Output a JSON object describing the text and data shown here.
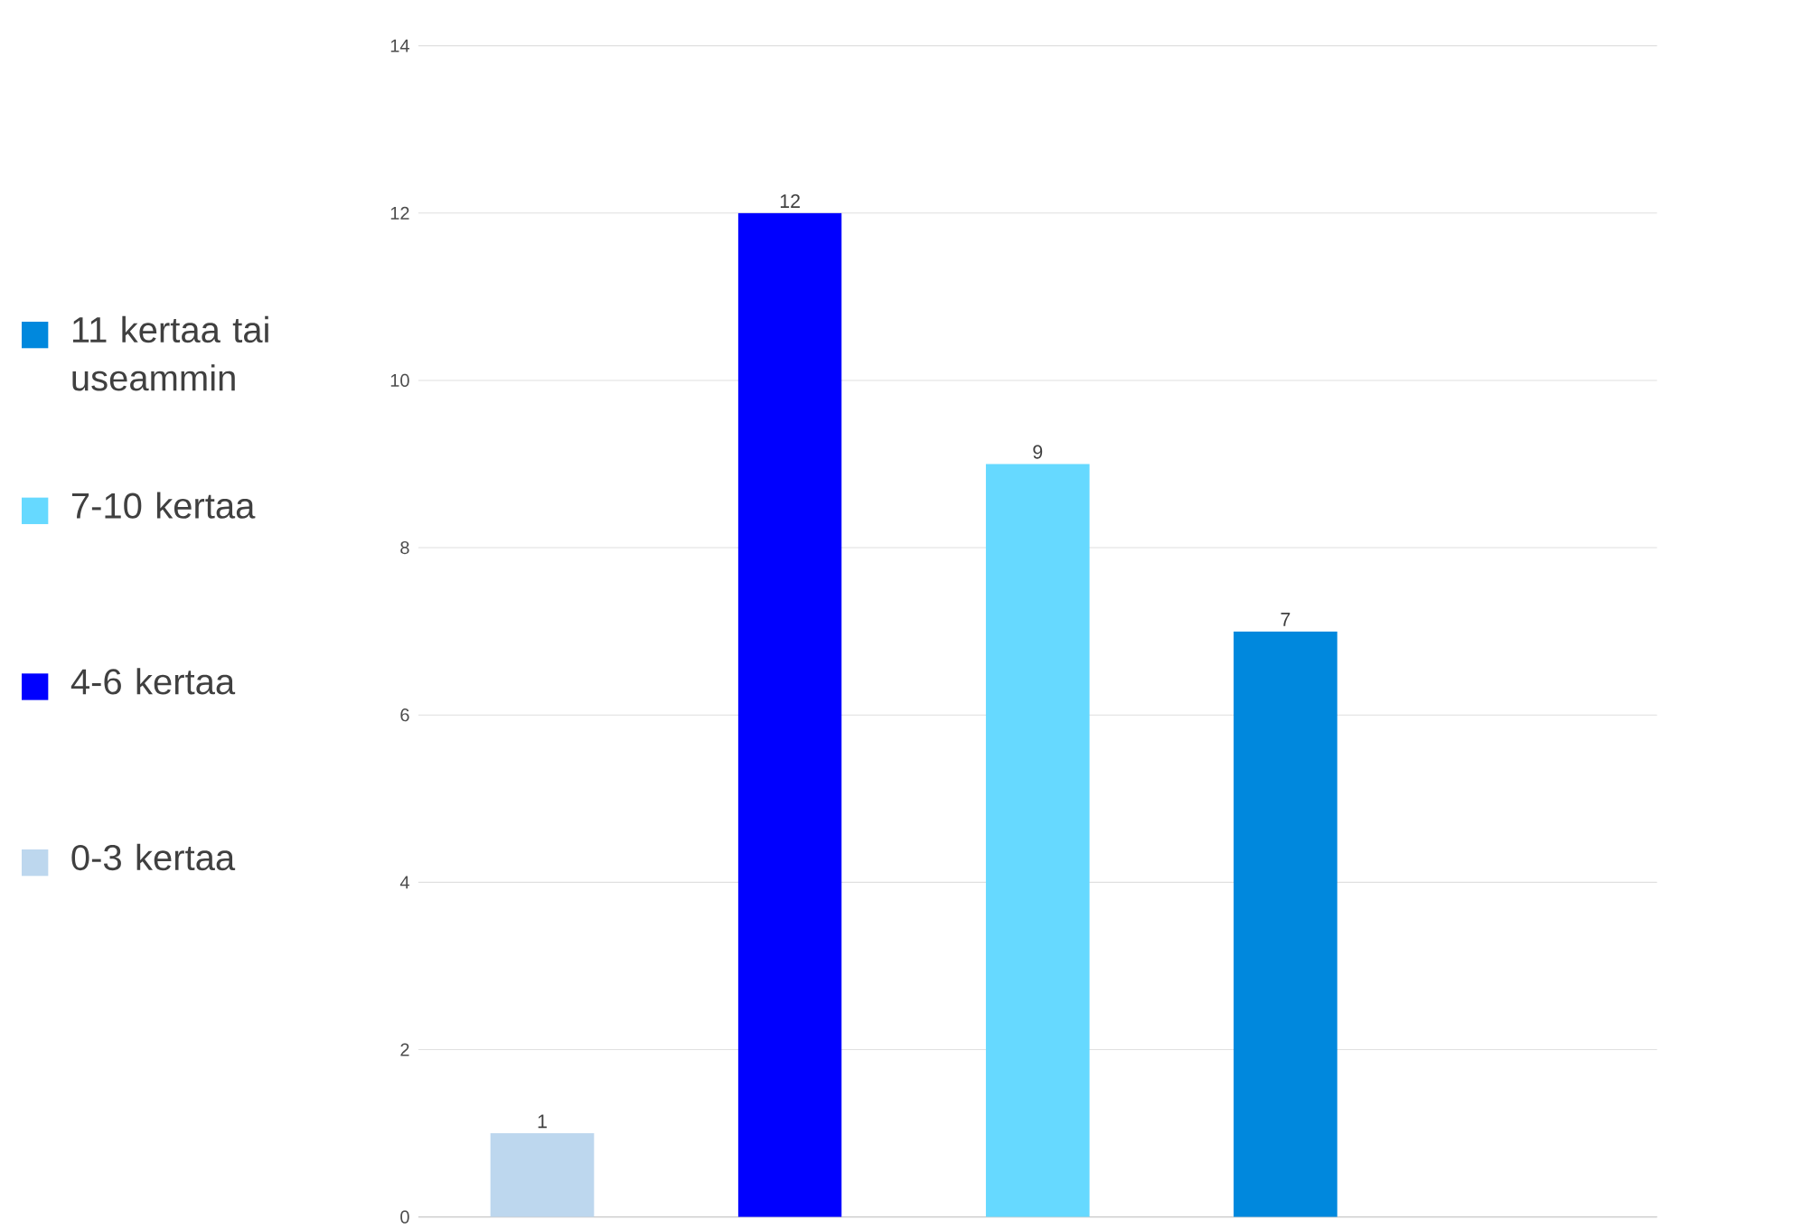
{
  "chart_data": {
    "type": "bar",
    "categories": [
      null,
      null,
      null,
      null,
      null
    ],
    "series": [
      {
        "name": "0-3 kertaa",
        "color": "#bdd7ee",
        "values": [
          1,
          null,
          null,
          null,
          null
        ]
      },
      {
        "name": "4-6 kertaa",
        "color": "#0000ff",
        "values": [
          null,
          12,
          null,
          null,
          null
        ]
      },
      {
        "name": "7-10 kertaa",
        "color": "#66d9ff",
        "values": [
          null,
          null,
          9,
          null,
          null
        ]
      },
      {
        "name": "11 kertaa tai useammin",
        "color": "#0088dd",
        "values": [
          null,
          null,
          null,
          7,
          null
        ]
      }
    ],
    "ylim": [
      0,
      14
    ],
    "yticks": [
      0,
      2,
      4,
      6,
      8,
      10,
      12,
      14
    ],
    "grid": "y",
    "legend": "left",
    "data_labels": true,
    "tick_labels": "y"
  }
}
